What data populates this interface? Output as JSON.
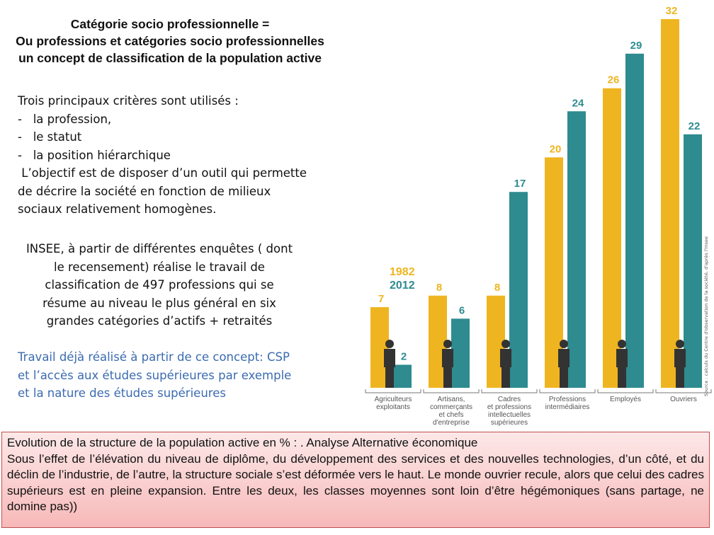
{
  "header": {
    "title_lines": [
      "Catégorie socio professionnelle =",
      "Ou professions et catégories socio professionnelles",
      "un concept de classification de la population active"
    ]
  },
  "criteria": {
    "lines": [
      "Trois principaux critères sont utilisés :",
      "-   la profession,",
      "-   le statut",
      "-   la position hiérarchique",
      " L’objectif est de disposer d’un outil qui permette",
      "de décrire la société en fonction de milieux",
      "sociaux relativement homogènes."
    ]
  },
  "insee": {
    "lines": [
      "INSEE, à partir de différentes enquêtes ( dont",
      "le recensement)  réalise le travail de",
      "classification de 497 professions  qui se",
      "résume au niveau le plus général en six",
      "grandes catégories d’actifs  + retraités"
    ]
  },
  "travail": {
    "lines": [
      "Travail déjà réalisé à partir de ce concept: CSP",
      "et l’accès aux études supérieures par exemple",
      "et la nature des études supérieures"
    ]
  },
  "source": "Source : calculs du Centre d'observation de la société, d'après l'Insee",
  "chart_data": {
    "type": "bar",
    "title": "",
    "xlabel": "",
    "ylabel": "",
    "ylim": [
      0,
      33
    ],
    "legend_position": "top-left",
    "colors": {
      "1982": "#efb521",
      "2012": "#2e8b8f"
    },
    "categories": [
      [
        "Agriculteurs",
        "exploitants"
      ],
      [
        "Artisans,",
        "commerçants",
        "et chefs",
        "d'entreprise"
      ],
      [
        "Cadres",
        "et professions",
        "intellectuelles",
        "supérieures"
      ],
      [
        "Professions",
        "intermédiaires"
      ],
      [
        "Employés"
      ],
      [
        "Ouvriers"
      ]
    ],
    "series": [
      {
        "name": "1982",
        "values": [
          7,
          8,
          8,
          20,
          26,
          32
        ]
      },
      {
        "name": "2012",
        "values": [
          2,
          6,
          17,
          24,
          29,
          22
        ]
      }
    ]
  },
  "bottom": {
    "heading": "Evolution de la structure de la population active en % : . Analyse Alternative économique",
    "body": "Sous l’effet de l’élévation du niveau de diplôme, du développement des services et des nouvelles technologies, d’un côté, et du déclin de l’industrie, de l’autre, la structure sociale s’est déformée vers le haut. Le monde ouvrier recule, alors que celui des cadres supérieurs est en pleine expansion. Entre les deux, les classes moyennes sont loin d’être hégémoniques (sans partage, ne domine pas))"
  }
}
